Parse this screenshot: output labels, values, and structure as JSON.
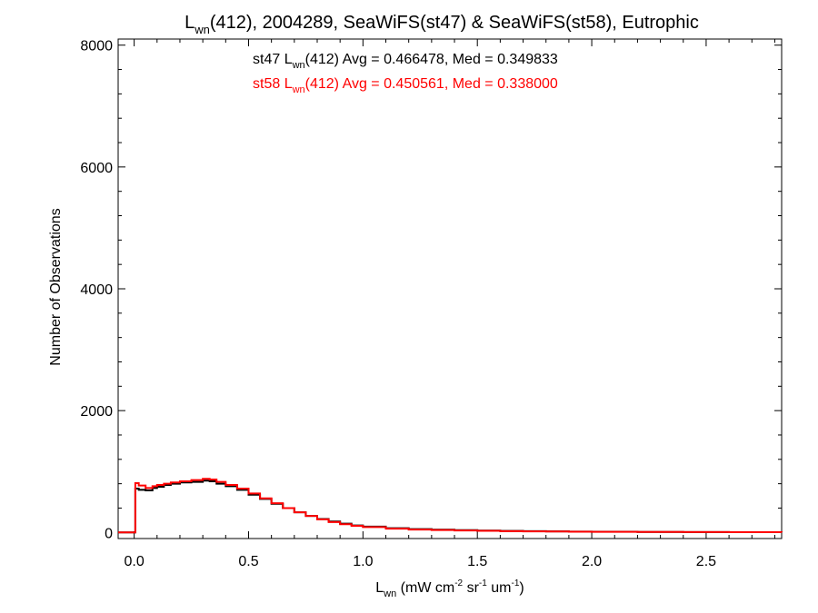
{
  "chart_data": {
    "type": "histogram-step",
    "title": {
      "base": "L",
      "sub": "wn",
      "rest": "(412), 2004289, SeaWiFS(st47) & SeaWiFS(st58), Eutrophic"
    },
    "xlabel": {
      "base": "L",
      "sub": "wn",
      "p1": " (mW cm",
      "sup1": "-2",
      "p2": " sr",
      "sup2": "-1",
      "p3": " um",
      "sup3": "-1",
      "p4": ")"
    },
    "ylabel": "Number of Observations",
    "xlim": [
      -0.07,
      2.83
    ],
    "ylim": [
      -100,
      8100
    ],
    "x_ticks": [
      {
        "v": 0.0,
        "label": "0.0"
      },
      {
        "v": 0.5,
        "label": "0.5"
      },
      {
        "v": 1.0,
        "label": "1.0"
      },
      {
        "v": 1.5,
        "label": "1.5"
      },
      {
        "v": 2.0,
        "label": "2.0"
      },
      {
        "v": 2.5,
        "label": "2.5"
      }
    ],
    "x_minor_step": 0.1,
    "y_ticks": [
      {
        "v": 0,
        "label": "0"
      },
      {
        "v": 2000,
        "label": "2000"
      },
      {
        "v": 4000,
        "label": "4000"
      },
      {
        "v": 6000,
        "label": "6000"
      },
      {
        "v": 8000,
        "label": "8000"
      }
    ],
    "y_minor_step": 400,
    "annotations": [
      {
        "series": "st47",
        "pre": "st47 L",
        "sub": "wn",
        "post": "(412) Avg = 0.466478, Med = 0.349833",
        "color": "#000000"
      },
      {
        "series": "st58",
        "pre": "st58 L",
        "sub": "wn",
        "post": "(412) Avg = 0.450561, Med = 0.338000",
        "color": "#ff0000"
      }
    ],
    "series": [
      {
        "name": "st47",
        "color": "#000000",
        "points": [
          [
            -0.07,
            0
          ],
          [
            0.0,
            0
          ],
          [
            0.005,
            720
          ],
          [
            0.02,
            700
          ],
          [
            0.05,
            690
          ],
          [
            0.08,
            730
          ],
          [
            0.1,
            750
          ],
          [
            0.13,
            780
          ],
          [
            0.16,
            800
          ],
          [
            0.2,
            820
          ],
          [
            0.25,
            830
          ],
          [
            0.3,
            850
          ],
          [
            0.33,
            840
          ],
          [
            0.36,
            800
          ],
          [
            0.4,
            760
          ],
          [
            0.45,
            700
          ],
          [
            0.5,
            620
          ],
          [
            0.55,
            550
          ],
          [
            0.6,
            470
          ],
          [
            0.65,
            400
          ],
          [
            0.7,
            330
          ],
          [
            0.75,
            270
          ],
          [
            0.8,
            220
          ],
          [
            0.85,
            180
          ],
          [
            0.9,
            145
          ],
          [
            0.95,
            115
          ],
          [
            1.0,
            95
          ],
          [
            1.1,
            70
          ],
          [
            1.2,
            55
          ],
          [
            1.3,
            45
          ],
          [
            1.4,
            38
          ],
          [
            1.5,
            30
          ],
          [
            1.6,
            25
          ],
          [
            1.7,
            21
          ],
          [
            1.8,
            17
          ],
          [
            1.9,
            14
          ],
          [
            2.0,
            12
          ],
          [
            2.2,
            9
          ],
          [
            2.4,
            7
          ],
          [
            2.6,
            5
          ],
          [
            2.83,
            4
          ]
        ]
      },
      {
        "name": "st58",
        "color": "#ff0000",
        "points": [
          [
            -0.07,
            0
          ],
          [
            0.0,
            0
          ],
          [
            0.005,
            810
          ],
          [
            0.02,
            770
          ],
          [
            0.05,
            730
          ],
          [
            0.08,
            760
          ],
          [
            0.1,
            780
          ],
          [
            0.13,
            800
          ],
          [
            0.16,
            820
          ],
          [
            0.2,
            840
          ],
          [
            0.25,
            860
          ],
          [
            0.3,
            880
          ],
          [
            0.33,
            870
          ],
          [
            0.36,
            830
          ],
          [
            0.4,
            780
          ],
          [
            0.45,
            720
          ],
          [
            0.5,
            640
          ],
          [
            0.55,
            560
          ],
          [
            0.6,
            480
          ],
          [
            0.65,
            400
          ],
          [
            0.7,
            330
          ],
          [
            0.75,
            270
          ],
          [
            0.8,
            215
          ],
          [
            0.85,
            170
          ],
          [
            0.9,
            135
          ],
          [
            0.95,
            108
          ],
          [
            1.0,
            88
          ],
          [
            1.1,
            62
          ],
          [
            1.2,
            48
          ],
          [
            1.3,
            40
          ],
          [
            1.4,
            33
          ],
          [
            1.5,
            27
          ],
          [
            1.6,
            22
          ],
          [
            1.7,
            18
          ],
          [
            1.8,
            15
          ],
          [
            1.9,
            12
          ],
          [
            2.0,
            10
          ],
          [
            2.2,
            8
          ],
          [
            2.4,
            6
          ],
          [
            2.6,
            5
          ],
          [
            2.83,
            3
          ]
        ]
      }
    ]
  }
}
